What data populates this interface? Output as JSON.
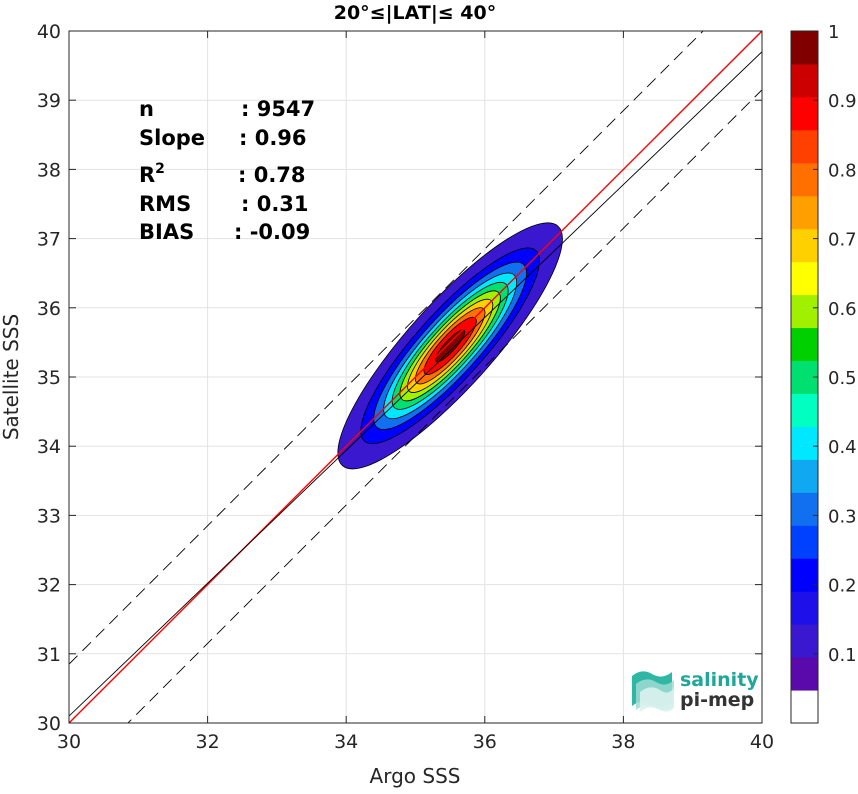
{
  "chart_data": {
    "type": "heatmap",
    "title": "20°≤|LAT|≤ 40°",
    "xlabel": "Argo SSS",
    "ylabel": "Satellite SSS",
    "xlim": [
      30,
      40
    ],
    "ylim": [
      30,
      40
    ],
    "xticks": [
      30,
      32,
      34,
      36,
      38,
      40
    ],
    "yticks": [
      30,
      31,
      32,
      33,
      34,
      35,
      36,
      37,
      38,
      39,
      40
    ],
    "grid": true,
    "stats": [
      {
        "label": "n",
        "value": ": 9547"
      },
      {
        "label": "Slope",
        "value": ": 0.96"
      },
      {
        "label": "R",
        "sup": "2",
        "value": ": 0.78"
      },
      {
        "label": "RMS",
        "value": ": 0.31"
      },
      {
        "label": "BIAS",
        "value": ": -0.09"
      }
    ],
    "lines": [
      {
        "name": "one-to-one",
        "color": "#ff0000",
        "style": "solid",
        "points": [
          [
            30,
            30
          ],
          [
            40,
            40
          ]
        ]
      },
      {
        "name": "regression",
        "color": "#000000",
        "style": "solid",
        "points": [
          [
            30,
            30.1
          ],
          [
            40,
            39.7
          ]
        ]
      },
      {
        "name": "upper-bound",
        "color": "#000000",
        "style": "dashed",
        "points": [
          [
            30,
            30.85
          ],
          [
            40,
            40.85
          ]
        ]
      },
      {
        "name": "lower-bound",
        "color": "#000000",
        "style": "dashed",
        "points": [
          [
            30,
            29.15
          ],
          [
            40,
            39.15
          ]
        ]
      }
    ],
    "density": {
      "center": [
        35.5,
        35.45
      ],
      "peak": 1.0,
      "levels": [
        0.05,
        0.15,
        0.25,
        0.35,
        0.45,
        0.55,
        0.65,
        0.75,
        0.85,
        0.95
      ],
      "extent": {
        "xmin": 33.9,
        "xmax": 36.4,
        "ymin": 33.7,
        "ymax": 36.3
      }
    },
    "colorbar": {
      "ticks": [
        0.1,
        0.2,
        0.3,
        0.4,
        0.5,
        0.6,
        0.7,
        0.8,
        0.9,
        1
      ],
      "labels": [
        "0.1",
        "0.2",
        "0.3",
        "0.4",
        "0.5",
        "0.6",
        "0.7",
        "0.8",
        "0.9",
        "1"
      ],
      "range": [
        0,
        1
      ],
      "colors": [
        "#ffffff",
        "#5a0aaa",
        "#3a18d0",
        "#1e10e8",
        "#0000ff",
        "#0040ff",
        "#1070f0",
        "#10a8f0",
        "#00e8ff",
        "#00ffc0",
        "#00e070",
        "#00d000",
        "#a0f000",
        "#ffff00",
        "#ffd000",
        "#ffa000",
        "#ff7000",
        "#ff4000",
        "#ff0000",
        "#cc0000",
        "#800000"
      ]
    }
  },
  "logo": {
    "line1": "salinity",
    "line2": "pi-mep"
  }
}
